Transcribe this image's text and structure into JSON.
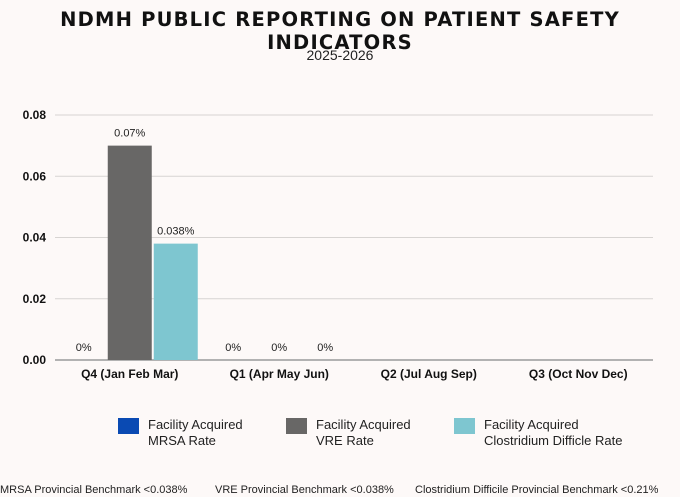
{
  "title": "NDMH PUBLIC REPORTING ON PATIENT SAFETY INDICATORS",
  "subtitle": "2025-2026",
  "colors": {
    "mrsa": "#0a4ab3",
    "vre": "#686766",
    "cdiff": "#7ec6d0",
    "grid": "#d7d4d2",
    "axis": "#9a9a9a"
  },
  "chart_data": {
    "type": "bar",
    "categories": [
      "Q4 (Jan Feb Mar)",
      "Q1 (Apr May Jun)",
      "Q2 (Jul Aug Sep)",
      "Q3 (Oct Nov Dec)"
    ],
    "series": [
      {
        "name": "Facility Acquired MRSA Rate",
        "values": [
          0,
          0,
          null,
          null
        ],
        "labels": [
          "0%",
          "0%",
          "",
          ""
        ]
      },
      {
        "name": "Facility Acquired VRE Rate",
        "values": [
          0.07,
          0,
          null,
          null
        ],
        "labels": [
          "0.07%",
          "0%",
          "",
          ""
        ]
      },
      {
        "name": "Facility Acquired Clostridium Difficle Rate",
        "values": [
          0.038,
          0,
          null,
          null
        ],
        "labels": [
          "0.038%",
          "0%",
          "",
          ""
        ]
      }
    ],
    "yticks": [
      "0.00",
      "0.02",
      "0.04",
      "0.06",
      "0.08"
    ],
    "ylim": [
      0,
      0.08
    ],
    "xlabel": "",
    "ylabel": "",
    "grid": true
  },
  "legend": [
    {
      "line1": "Facility Acquired",
      "line2": "MRSA Rate"
    },
    {
      "line1": "Facility Acquired",
      "line2": "VRE Rate"
    },
    {
      "line1": "Facility Acquired",
      "line2": "Clostridium Difficle Rate"
    }
  ],
  "footer": {
    "mrsa": "MRSA Provincial Benchmark <0.038%",
    "vre": "VRE Provincial Benchmark <0.038%",
    "cdiff": "Clostridium Difficile Provincial Benchmark <0.21%"
  }
}
